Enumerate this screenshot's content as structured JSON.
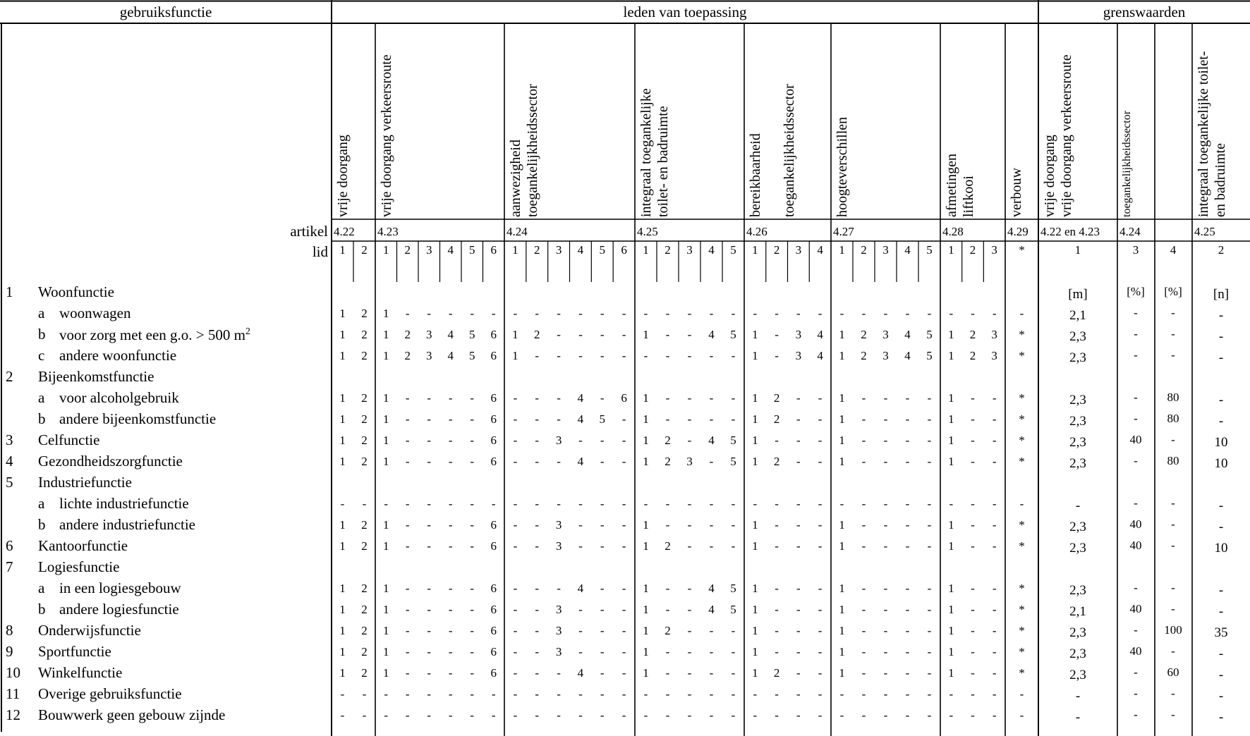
{
  "header": {
    "gebruiksfunctie": "gebruiksfunctie",
    "leden": "leden van toepassing",
    "grens": "grenswaarden"
  },
  "columns": [
    {
      "lines": [
        "vrije doorgang"
      ]
    },
    {
      "lines": [
        "vrije doorgang verkeersroute"
      ]
    },
    {
      "lines": [
        "aanwezigheid",
        "toegankelijkheidssector"
      ]
    },
    {
      "lines": [
        "integraal toegankelijke",
        "toilet- en badruimte"
      ]
    },
    {
      "lines": [
        "bereikbaarheid",
        "",
        "toegankelijkheidssector"
      ]
    },
    {
      "lines": [
        "hoogteverschillen"
      ]
    },
    {
      "lines": [
        "afmetingen",
        "liftkooi"
      ]
    },
    {
      "lines": [
        "verbouw"
      ]
    },
    {
      "lines": [
        "vrije doorgang",
        "vrije doorgang verkeersroute"
      ]
    },
    {
      "lines": [
        "toegankelijkheidssector"
      ]
    },
    {
      "lines": [
        ""
      ]
    },
    {
      "lines": [
        "integraal toegankelijke toilet-",
        "en badruimte"
      ]
    }
  ],
  "artikel_label": "artikel",
  "lid_label": "lid",
  "artikels": [
    "4.22",
    "4.23",
    "4.24",
    "4.25",
    "4.26",
    "4.27",
    "4.28",
    "4.29",
    "4.22 en 4.23",
    "4.24",
    "",
    "4.25"
  ],
  "lid_numbers": [
    "1",
    "2",
    "1",
    "2",
    "3",
    "4",
    "5",
    "6",
    "1",
    "2",
    "3",
    "4",
    "5",
    "6",
    "1",
    "2",
    "3",
    "4",
    "5",
    "1",
    "2",
    "3",
    "4",
    "1",
    "2",
    "3",
    "4",
    "5",
    "1",
    "2",
    "3",
    "*"
  ],
  "grens_lid": [
    "1",
    "3",
    "4",
    "2"
  ],
  "rows": [
    {
      "num": "1",
      "label": "Woonfunctie",
      "values": [],
      "grens": [
        "[m]",
        "[%]",
        "[%]",
        "[n]"
      ]
    },
    {
      "num": "",
      "letter": "a",
      "label": "woonwagen",
      "values": [
        "1",
        "2",
        "1",
        "-",
        "-",
        "-",
        "-",
        "-",
        "-",
        "-",
        "-",
        "-",
        "-",
        "-",
        "-",
        "-",
        "-",
        "-",
        "-",
        "-",
        "-",
        "-",
        "-",
        "-",
        "-",
        "-",
        "-",
        "-",
        "-",
        "-",
        "-",
        "-"
      ],
      "grens": [
        "2,1",
        "-",
        "-",
        "-"
      ]
    },
    {
      "num": "",
      "letter": "b",
      "label": "voor zorg met een g.o. > 500 m",
      "sup": "2",
      "values": [
        "1",
        "2",
        "1",
        "2",
        "3",
        "4",
        "5",
        "6",
        "1",
        "2",
        "-",
        "-",
        "-",
        "-",
        "1",
        "-",
        "-",
        "4",
        "5",
        "1",
        "-",
        "3",
        "4",
        "1",
        "2",
        "3",
        "4",
        "5",
        "1",
        "2",
        "3",
        "*"
      ],
      "grens": [
        "2,3",
        "-",
        "-",
        "-"
      ]
    },
    {
      "num": "",
      "letter": "c",
      "label": "andere woonfunctie",
      "values": [
        "1",
        "2",
        "1",
        "2",
        "3",
        "4",
        "5",
        "6",
        "1",
        "-",
        "-",
        "-",
        "-",
        "-",
        "-",
        "-",
        "-",
        "-",
        "-",
        "1",
        "-",
        "3",
        "4",
        "1",
        "2",
        "3",
        "4",
        "5",
        "1",
        "2",
        "3",
        "*"
      ],
      "grens": [
        "2,3",
        "-",
        "-",
        "-"
      ]
    },
    {
      "num": "2",
      "label": "Bijeenkomstfunctie",
      "values": [],
      "grens": [
        "",
        "",
        "",
        ""
      ]
    },
    {
      "num": "",
      "letter": "a",
      "label": "voor alcoholgebruik",
      "values": [
        "1",
        "2",
        "1",
        "-",
        "-",
        "-",
        "-",
        "6",
        "-",
        "-",
        "-",
        "4",
        "-",
        "6",
        "1",
        "-",
        "-",
        "-",
        "-",
        "1",
        "2",
        "-",
        "-",
        "1",
        "-",
        "-",
        "-",
        "-",
        "1",
        "-",
        "-",
        "*"
      ],
      "grens": [
        "2,3",
        "-",
        "80",
        "-"
      ]
    },
    {
      "num": "",
      "letter": "b",
      "label": "andere bijeenkomstfunctie",
      "values": [
        "1",
        "2",
        "1",
        "-",
        "-",
        "-",
        "-",
        "6",
        "-",
        "-",
        "-",
        "4",
        "5",
        "-",
        "1",
        "-",
        "-",
        "-",
        "-",
        "1",
        "2",
        "-",
        "-",
        "1",
        "-",
        "-",
        "-",
        "-",
        "1",
        "-",
        "-",
        "*"
      ],
      "grens": [
        "2,3",
        "-",
        "80",
        "-"
      ]
    },
    {
      "num": "3",
      "label": "Celfunctie",
      "values": [
        "1",
        "2",
        "1",
        "-",
        "-",
        "-",
        "-",
        "6",
        "-",
        "-",
        "3",
        "-",
        "-",
        "-",
        "1",
        "2",
        "-",
        "4",
        "5",
        "1",
        "-",
        "-",
        "-",
        "1",
        "-",
        "-",
        "-",
        "-",
        "1",
        "-",
        "-",
        "*"
      ],
      "grens": [
        "2,3",
        "40",
        "-",
        "10"
      ]
    },
    {
      "num": "4",
      "label": "Gezondheidszorgfunctie",
      "values": [
        "1",
        "2",
        "1",
        "-",
        "-",
        "-",
        "-",
        "6",
        "-",
        "-",
        "-",
        "4",
        "-",
        "-",
        "1",
        "2",
        "3",
        "-",
        "5",
        "1",
        "2",
        "-",
        "-",
        "1",
        "-",
        "-",
        "-",
        "-",
        "1",
        "-",
        "-",
        "*"
      ],
      "grens": [
        "2,3",
        "-",
        "80",
        "10"
      ]
    },
    {
      "num": "5",
      "label": "Industriefunctie",
      "values": [],
      "grens": [
        "",
        "",
        "",
        ""
      ]
    },
    {
      "num": "",
      "letter": "a",
      "label": "lichte industriefunctie",
      "values": [
        "-",
        "-",
        "-",
        "-",
        "-",
        "-",
        "-",
        "-",
        "-",
        "-",
        "-",
        "-",
        "-",
        "-",
        "-",
        "-",
        "-",
        "-",
        "-",
        "-",
        "-",
        "-",
        "-",
        "-",
        "-",
        "-",
        "-",
        "-",
        "-",
        "-",
        "-",
        "-"
      ],
      "grens": [
        "-",
        "-",
        "-",
        "-"
      ]
    },
    {
      "num": "",
      "letter": "b",
      "label": "andere industriefunctie",
      "values": [
        "1",
        "2",
        "1",
        "-",
        "-",
        "-",
        "-",
        "6",
        "-",
        "-",
        "3",
        "-",
        "-",
        "-",
        "1",
        "-",
        "-",
        "-",
        "-",
        "1",
        "-",
        "-",
        "-",
        "1",
        "-",
        "-",
        "-",
        "-",
        "1",
        "-",
        "-",
        "*"
      ],
      "grens": [
        "2,3",
        "40",
        "-",
        "-"
      ]
    },
    {
      "num": "6",
      "label": "Kantoorfunctie",
      "values": [
        "1",
        "2",
        "1",
        "-",
        "-",
        "-",
        "-",
        "6",
        "-",
        "-",
        "3",
        "-",
        "-",
        "-",
        "1",
        "2",
        "-",
        "-",
        "-",
        "1",
        "-",
        "-",
        "-",
        "1",
        "-",
        "-",
        "-",
        "-",
        "1",
        "-",
        "-",
        "*"
      ],
      "grens": [
        "2,3",
        "40",
        "-",
        "10"
      ]
    },
    {
      "num": "7",
      "label": "Logiesfunctie",
      "values": [],
      "grens": [
        "",
        "",
        "",
        ""
      ]
    },
    {
      "num": "",
      "letter": "a",
      "label": "in een logiesgebouw",
      "values": [
        "1",
        "2",
        "1",
        "-",
        "-",
        "-",
        "-",
        "6",
        "-",
        "-",
        "-",
        "4",
        "-",
        "-",
        "1",
        "-",
        "-",
        "4",
        "5",
        "1",
        "-",
        "-",
        "-",
        "1",
        "-",
        "-",
        "-",
        "-",
        "1",
        "-",
        "-",
        "*"
      ],
      "grens": [
        "2,3",
        "-",
        "-",
        "-"
      ]
    },
    {
      "num": "",
      "letter": "b",
      "label": "andere logiesfunctie",
      "values": [
        "1",
        "2",
        "1",
        "-",
        "-",
        "-",
        "-",
        "6",
        "-",
        "-",
        "3",
        "-",
        "-",
        "-",
        "1",
        "-",
        "-",
        "4",
        "5",
        "1",
        "-",
        "-",
        "-",
        "1",
        "-",
        "-",
        "-",
        "-",
        "1",
        "-",
        "-",
        "*"
      ],
      "grens": [
        "2,1",
        "40",
        "-",
        "-"
      ]
    },
    {
      "num": "8",
      "label": "Onderwijsfunctie",
      "values": [
        "1",
        "2",
        "1",
        "-",
        "-",
        "-",
        "-",
        "6",
        "-",
        "-",
        "3",
        "-",
        "-",
        "-",
        "1",
        "2",
        "-",
        "-",
        "-",
        "1",
        "-",
        "-",
        "-",
        "1",
        "-",
        "-",
        "-",
        "-",
        "1",
        "-",
        "-",
        "*"
      ],
      "grens": [
        "2,3",
        "-",
        "100",
        "35"
      ]
    },
    {
      "num": "9",
      "label": "Sportfunctie",
      "values": [
        "1",
        "2",
        "1",
        "-",
        "-",
        "-",
        "-",
        "6",
        "-",
        "-",
        "3",
        "-",
        "-",
        "-",
        "1",
        "-",
        "-",
        "-",
        "-",
        "1",
        "-",
        "-",
        "-",
        "1",
        "-",
        "-",
        "-",
        "-",
        "1",
        "-",
        "-",
        "*"
      ],
      "grens": [
        "2,3",
        "40",
        "-",
        "-"
      ]
    },
    {
      "num": "10",
      "label": "Winkelfunctie",
      "values": [
        "1",
        "2",
        "1",
        "-",
        "-",
        "-",
        "-",
        "6",
        "-",
        "-",
        "-",
        "4",
        "-",
        "-",
        "1",
        "-",
        "-",
        "-",
        "-",
        "1",
        "2",
        "-",
        "-",
        "1",
        "-",
        "-",
        "-",
        "-",
        "1",
        "-",
        "-",
        "*"
      ],
      "grens": [
        "2,3",
        "-",
        "60",
        "-"
      ]
    },
    {
      "num": "11",
      "label": "Overige gebruiksfunctie",
      "values": [
        "-",
        "-",
        "-",
        "-",
        "-",
        "-",
        "-",
        "-",
        "-",
        "-",
        "-",
        "-",
        "-",
        "-",
        "-",
        "-",
        "-",
        "-",
        "-",
        "-",
        "-",
        "-",
        "-",
        "-",
        "-",
        "-",
        "-",
        "-",
        "-",
        "-",
        "-",
        "-"
      ],
      "grens": [
        "-",
        "-",
        "-",
        "-"
      ]
    },
    {
      "num": "12",
      "label": "Bouwwerk geen gebouw zijnde",
      "values": [
        "-",
        "-",
        "-",
        "-",
        "-",
        "-",
        "-",
        "-",
        "-",
        "-",
        "-",
        "-",
        "-",
        "-",
        "-",
        "-",
        "-",
        "-",
        "-",
        "-",
        "-",
        "-",
        "-",
        "-",
        "-",
        "-",
        "-",
        "-",
        "-",
        "-",
        "-",
        "-"
      ],
      "grens": [
        "-",
        "-",
        "-",
        "-"
      ]
    }
  ]
}
